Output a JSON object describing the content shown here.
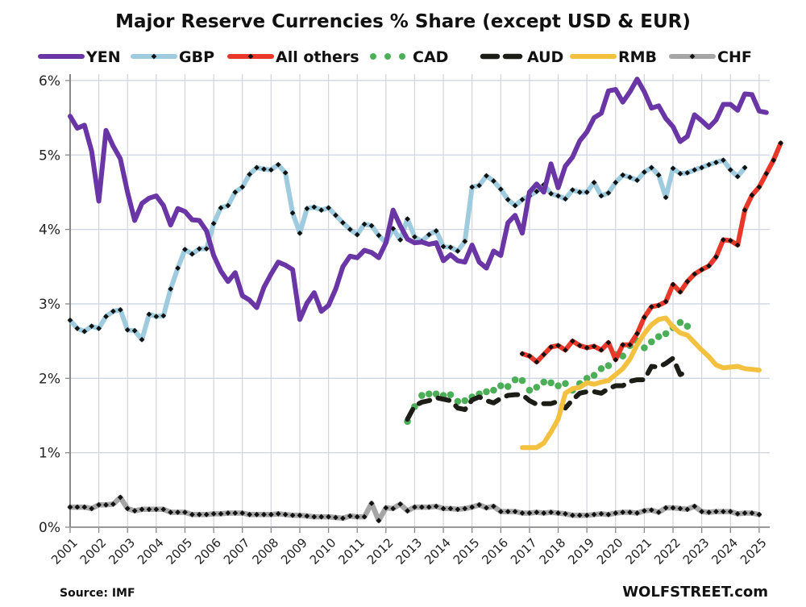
{
  "chart_data": {
    "type": "line",
    "title": "Major Reserve Currencies % Share (except USD & EUR)",
    "xlabel": "",
    "ylabel": "",
    "ylim": [
      0,
      6
    ],
    "xlim": [
      2001,
      2025.3
    ],
    "grid": true,
    "legend_position": "top",
    "y_ticks": [
      "0%",
      "1%",
      "2%",
      "3%",
      "4%",
      "5%",
      "6%"
    ],
    "y_tick_values": [
      0,
      1,
      2,
      3,
      4,
      5,
      6
    ],
    "x_ticks": [
      "2001",
      "2002",
      "2003",
      "2004",
      "2005",
      "2006",
      "2007",
      "2008",
      "2009",
      "2010",
      "2011",
      "2012",
      "2013",
      "2014",
      "2015",
      "2016",
      "2017",
      "2018",
      "2019",
      "2020",
      "2021",
      "2022",
      "2023",
      "2024",
      "2025"
    ],
    "x_step": "quarterly",
    "source": "Source: IMF",
    "brand": "WOLFSTREET.com",
    "series": [
      {
        "name": "YEN",
        "color": "#6a35a4",
        "style": "solid",
        "start": 2001.0,
        "values": [
          5.52,
          5.36,
          5.4,
          5.05,
          4.38,
          5.33,
          5.12,
          4.95,
          4.5,
          4.12,
          4.35,
          4.42,
          4.45,
          4.32,
          4.06,
          4.28,
          4.24,
          4.13,
          4.12,
          3.98,
          3.65,
          3.44,
          3.3,
          3.42,
          3.11,
          3.05,
          2.95,
          3.22,
          3.4,
          3.56,
          3.52,
          3.46,
          2.79,
          3.01,
          3.15,
          2.9,
          2.98,
          3.2,
          3.5,
          3.64,
          3.62,
          3.72,
          3.69,
          3.62,
          3.82,
          4.26,
          4.05,
          3.87,
          3.82,
          3.83,
          3.8,
          3.82,
          3.58,
          3.66,
          3.58,
          3.56,
          3.79,
          3.56,
          3.48,
          3.71,
          3.65,
          4.09,
          4.19,
          3.95,
          4.5,
          4.61,
          4.5,
          4.88,
          4.56,
          4.85,
          4.97,
          5.19,
          5.31,
          5.5,
          5.56,
          5.86,
          5.88,
          5.71,
          5.85,
          6.02,
          5.85,
          5.63,
          5.66,
          5.49,
          5.38,
          5.18,
          5.25,
          5.54,
          5.46,
          5.37,
          5.47,
          5.68,
          5.68,
          5.6,
          5.82,
          5.81,
          5.59,
          5.57
        ]
      },
      {
        "name": "GBP",
        "color": "#9ecbde",
        "style": "solid-markers",
        "start": 2001.0,
        "values": [
          2.78,
          2.67,
          2.63,
          2.7,
          2.67,
          2.83,
          2.9,
          2.92,
          2.65,
          2.64,
          2.52,
          2.86,
          2.83,
          2.84,
          3.2,
          3.48,
          3.73,
          3.67,
          3.74,
          3.74,
          4.08,
          4.29,
          4.32,
          4.5,
          4.57,
          4.74,
          4.83,
          4.81,
          4.8,
          4.87,
          4.76,
          4.22,
          3.95,
          4.28,
          4.3,
          4.26,
          4.29,
          4.19,
          4.09,
          4.0,
          3.93,
          4.07,
          4.05,
          3.92,
          3.82,
          4.01,
          3.86,
          4.14,
          3.9,
          3.84,
          3.93,
          3.98,
          3.77,
          3.76,
          3.71,
          3.84,
          4.57,
          4.59,
          4.72,
          4.65,
          4.54,
          4.4,
          4.32,
          4.4,
          4.45,
          4.51,
          4.6,
          4.48,
          4.45,
          4.41,
          4.53,
          4.5,
          4.5,
          4.63,
          4.45,
          4.49,
          4.63,
          4.73,
          4.7,
          4.66,
          4.77,
          4.83,
          4.73,
          4.43,
          4.82,
          4.75,
          4.76,
          4.8,
          4.83,
          4.87,
          4.9,
          4.93,
          4.8,
          4.71,
          4.83
        ]
      },
      {
        "name": "All others",
        "color": "#e8382a",
        "style": "solid-markers",
        "start": 2016.75,
        "values": [
          2.33,
          2.3,
          2.22,
          2.32,
          2.42,
          2.44,
          2.38,
          2.5,
          2.44,
          2.41,
          2.43,
          2.38,
          2.48,
          2.25,
          2.45,
          2.45,
          2.6,
          2.82,
          2.96,
          2.98,
          3.03,
          3.26,
          3.16,
          3.3,
          3.4,
          3.46,
          3.51,
          3.63,
          3.86,
          3.85,
          3.79,
          4.26,
          4.46,
          4.57,
          4.75,
          4.93,
          5.16
        ]
      },
      {
        "name": "CAD",
        "color": "#4caf58",
        "style": "dotted",
        "start": 2012.75,
        "values": [
          1.42,
          1.62,
          1.77,
          1.79,
          1.79,
          1.77,
          1.78,
          1.69,
          1.7,
          1.75,
          1.79,
          1.82,
          1.84,
          1.9,
          1.89,
          1.98,
          1.97,
          1.84,
          1.88,
          1.95,
          1.94,
          1.9,
          1.93,
          1.84,
          1.93,
          2.0,
          2.04,
          2.13,
          2.17,
          2.32,
          2.3,
          2.44,
          2.5,
          2.41,
          2.49,
          2.56,
          2.6,
          2.68,
          2.75,
          2.7
        ]
      },
      {
        "name": "AUD",
        "color": "#1d1d17",
        "style": "dashed",
        "start": 2012.75,
        "values": [
          1.45,
          1.63,
          1.68,
          1.7,
          1.74,
          1.72,
          1.7,
          1.6,
          1.58,
          1.71,
          1.75,
          1.7,
          1.67,
          1.73,
          1.77,
          1.78,
          1.78,
          1.7,
          1.65,
          1.66,
          1.66,
          1.69,
          1.6,
          1.71,
          1.8,
          1.82,
          1.82,
          1.8,
          1.86,
          1.9,
          1.9,
          1.96,
          1.98,
          1.98,
          2.16,
          2.15,
          2.2,
          2.27,
          2.05,
          2.09
        ]
      },
      {
        "name": "RMB",
        "color": "#f3c03f",
        "style": "solid",
        "start": 2016.75,
        "values": [
          1.07,
          1.07,
          1.07,
          1.13,
          1.28,
          1.45,
          1.8,
          1.86,
          1.88,
          1.94,
          1.92,
          1.95,
          1.97,
          2.05,
          2.13,
          2.26,
          2.45,
          2.6,
          2.72,
          2.79,
          2.81,
          2.69,
          2.61,
          2.58,
          2.48,
          2.38,
          2.29,
          2.18,
          2.14,
          2.15,
          2.16,
          2.13,
          2.12,
          2.11
        ]
      },
      {
        "name": "CHF",
        "color": "#a6a6a6",
        "style": "solid-markers",
        "start": 2001.0,
        "values": [
          0.27,
          0.27,
          0.27,
          0.25,
          0.3,
          0.3,
          0.31,
          0.4,
          0.25,
          0.22,
          0.24,
          0.24,
          0.24,
          0.24,
          0.2,
          0.2,
          0.2,
          0.17,
          0.17,
          0.17,
          0.18,
          0.18,
          0.19,
          0.19,
          0.19,
          0.17,
          0.17,
          0.17,
          0.17,
          0.18,
          0.17,
          0.16,
          0.16,
          0.15,
          0.14,
          0.14,
          0.14,
          0.13,
          0.12,
          0.15,
          0.14,
          0.14,
          0.32,
          0.09,
          0.26,
          0.25,
          0.31,
          0.22,
          0.27,
          0.27,
          0.27,
          0.28,
          0.25,
          0.25,
          0.24,
          0.25,
          0.27,
          0.3,
          0.26,
          0.28,
          0.21,
          0.21,
          0.21,
          0.19,
          0.19,
          0.2,
          0.19,
          0.2,
          0.19,
          0.18,
          0.16,
          0.16,
          0.16,
          0.17,
          0.18,
          0.17,
          0.19,
          0.2,
          0.2,
          0.19,
          0.22,
          0.23,
          0.2,
          0.26,
          0.26,
          0.25,
          0.24,
          0.28,
          0.21,
          0.2,
          0.21,
          0.21,
          0.21,
          0.18,
          0.19,
          0.19,
          0.17
        ]
      }
    ]
  }
}
